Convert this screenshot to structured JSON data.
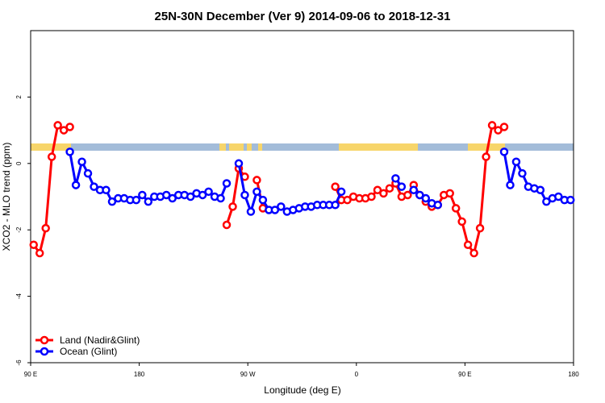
{
  "chart_data": {
    "type": "line",
    "title": "25N-30N December (Ver 9)   2014-09-06 to 2018-12-31",
    "x_label": "Longitude (deg E)",
    "y_label": "XCO2 - MLO trend (ppm)",
    "xlim": [
      90,
      540
    ],
    "ylim": [
      -6,
      4
    ],
    "xticks": [
      {
        "value": 90,
        "label": "90 E"
      },
      180,
      {
        "value": 270,
        "label": "90 W"
      },
      {
        "value": 360,
        "label": "0"
      },
      {
        "value": 450,
        "label": "90 E"
      },
      {
        "value": 540,
        "label": "180"
      }
    ],
    "yticks": [
      -6,
      -4,
      -2,
      0,
      2
    ],
    "legend": "bottom-left",
    "series": [
      {
        "name": "Land (Nadir&Glint)",
        "color": "#ff0000",
        "x": [
          92.5,
          97.5,
          102.5,
          107.5,
          112.5,
          117.5,
          122.5,
          null,
          252.5,
          257.5,
          262.5,
          267.5,
          null,
          277.5,
          282.5,
          null,
          342.5,
          347.5,
          352.5,
          357.5,
          362.5,
          367.5,
          372.5,
          377.5,
          382.5,
          387.5,
          392.5,
          397.5,
          402.5,
          407.5,
          412.5,
          417.5,
          422.5,
          427.5,
          432.5,
          437.5,
          442.5,
          447.5,
          452.5,
          457.5,
          462.5,
          467.5,
          472.5,
          477.5,
          482.5
        ],
        "values": [
          -2.45,
          -2.7,
          -1.95,
          0.2,
          1.15,
          1.0,
          1.1,
          null,
          -1.85,
          -1.3,
          -0.15,
          -0.4,
          null,
          -0.5,
          -1.35,
          null,
          -0.7,
          -1.1,
          -1.1,
          -1.0,
          -1.05,
          -1.05,
          -1.0,
          -0.8,
          -0.9,
          -0.75,
          -0.6,
          -1.0,
          -0.95,
          -0.65,
          -0.95,
          -1.15,
          -1.3,
          -1.25,
          -0.95,
          -0.9,
          -1.35,
          -1.75,
          -2.45,
          -2.7,
          -1.95,
          0.2,
          1.15,
          1.0,
          1.1
        ]
      },
      {
        "name": "Ocean (Glint)",
        "color": "#0000ff",
        "x": [
          122.5,
          127.5,
          132.5,
          137.5,
          142.5,
          147.5,
          152.5,
          157.5,
          162.5,
          167.5,
          172.5,
          177.5,
          182.5,
          187.5,
          192.5,
          197.5,
          202.5,
          207.5,
          212.5,
          217.5,
          222.5,
          227.5,
          232.5,
          237.5,
          242.5,
          247.5,
          252.5,
          null,
          262.5,
          267.5,
          272.5,
          277.5,
          282.5,
          287.5,
          292.5,
          297.5,
          302.5,
          307.5,
          312.5,
          317.5,
          322.5,
          327.5,
          332.5,
          337.5,
          342.5,
          347.5,
          null,
          392.5,
          397.5,
          null,
          407.5,
          412.5,
          417.5,
          422.5,
          427.5,
          null,
          482.5,
          487.5,
          492.5,
          497.5,
          502.5,
          507.5,
          512.5,
          517.5,
          522.5,
          527.5,
          532.5,
          537.5
        ],
        "values": [
          0.35,
          -0.65,
          0.05,
          -0.3,
          -0.7,
          -0.8,
          -0.8,
          -1.15,
          -1.05,
          -1.05,
          -1.1,
          -1.1,
          -0.95,
          -1.15,
          -1.0,
          -1.0,
          -0.95,
          -1.05,
          -0.95,
          -0.95,
          -1.0,
          -0.9,
          -0.95,
          -0.85,
          -1.0,
          -1.05,
          -0.6,
          null,
          0.0,
          -0.95,
          -1.45,
          -0.85,
          -1.1,
          -1.4,
          -1.4,
          -1.3,
          -1.45,
          -1.4,
          -1.35,
          -1.3,
          -1.3,
          -1.25,
          -1.25,
          -1.25,
          -1.25,
          -0.85,
          null,
          -0.45,
          -0.7,
          null,
          -0.8,
          -0.95,
          -1.05,
          -1.2,
          -1.25,
          null,
          0.35,
          -0.65,
          0.05,
          -0.3,
          -0.7,
          -0.75,
          -0.8,
          -1.15,
          -1.05,
          -1.0,
          -1.1,
          -1.1
        ]
      }
    ]
  }
}
